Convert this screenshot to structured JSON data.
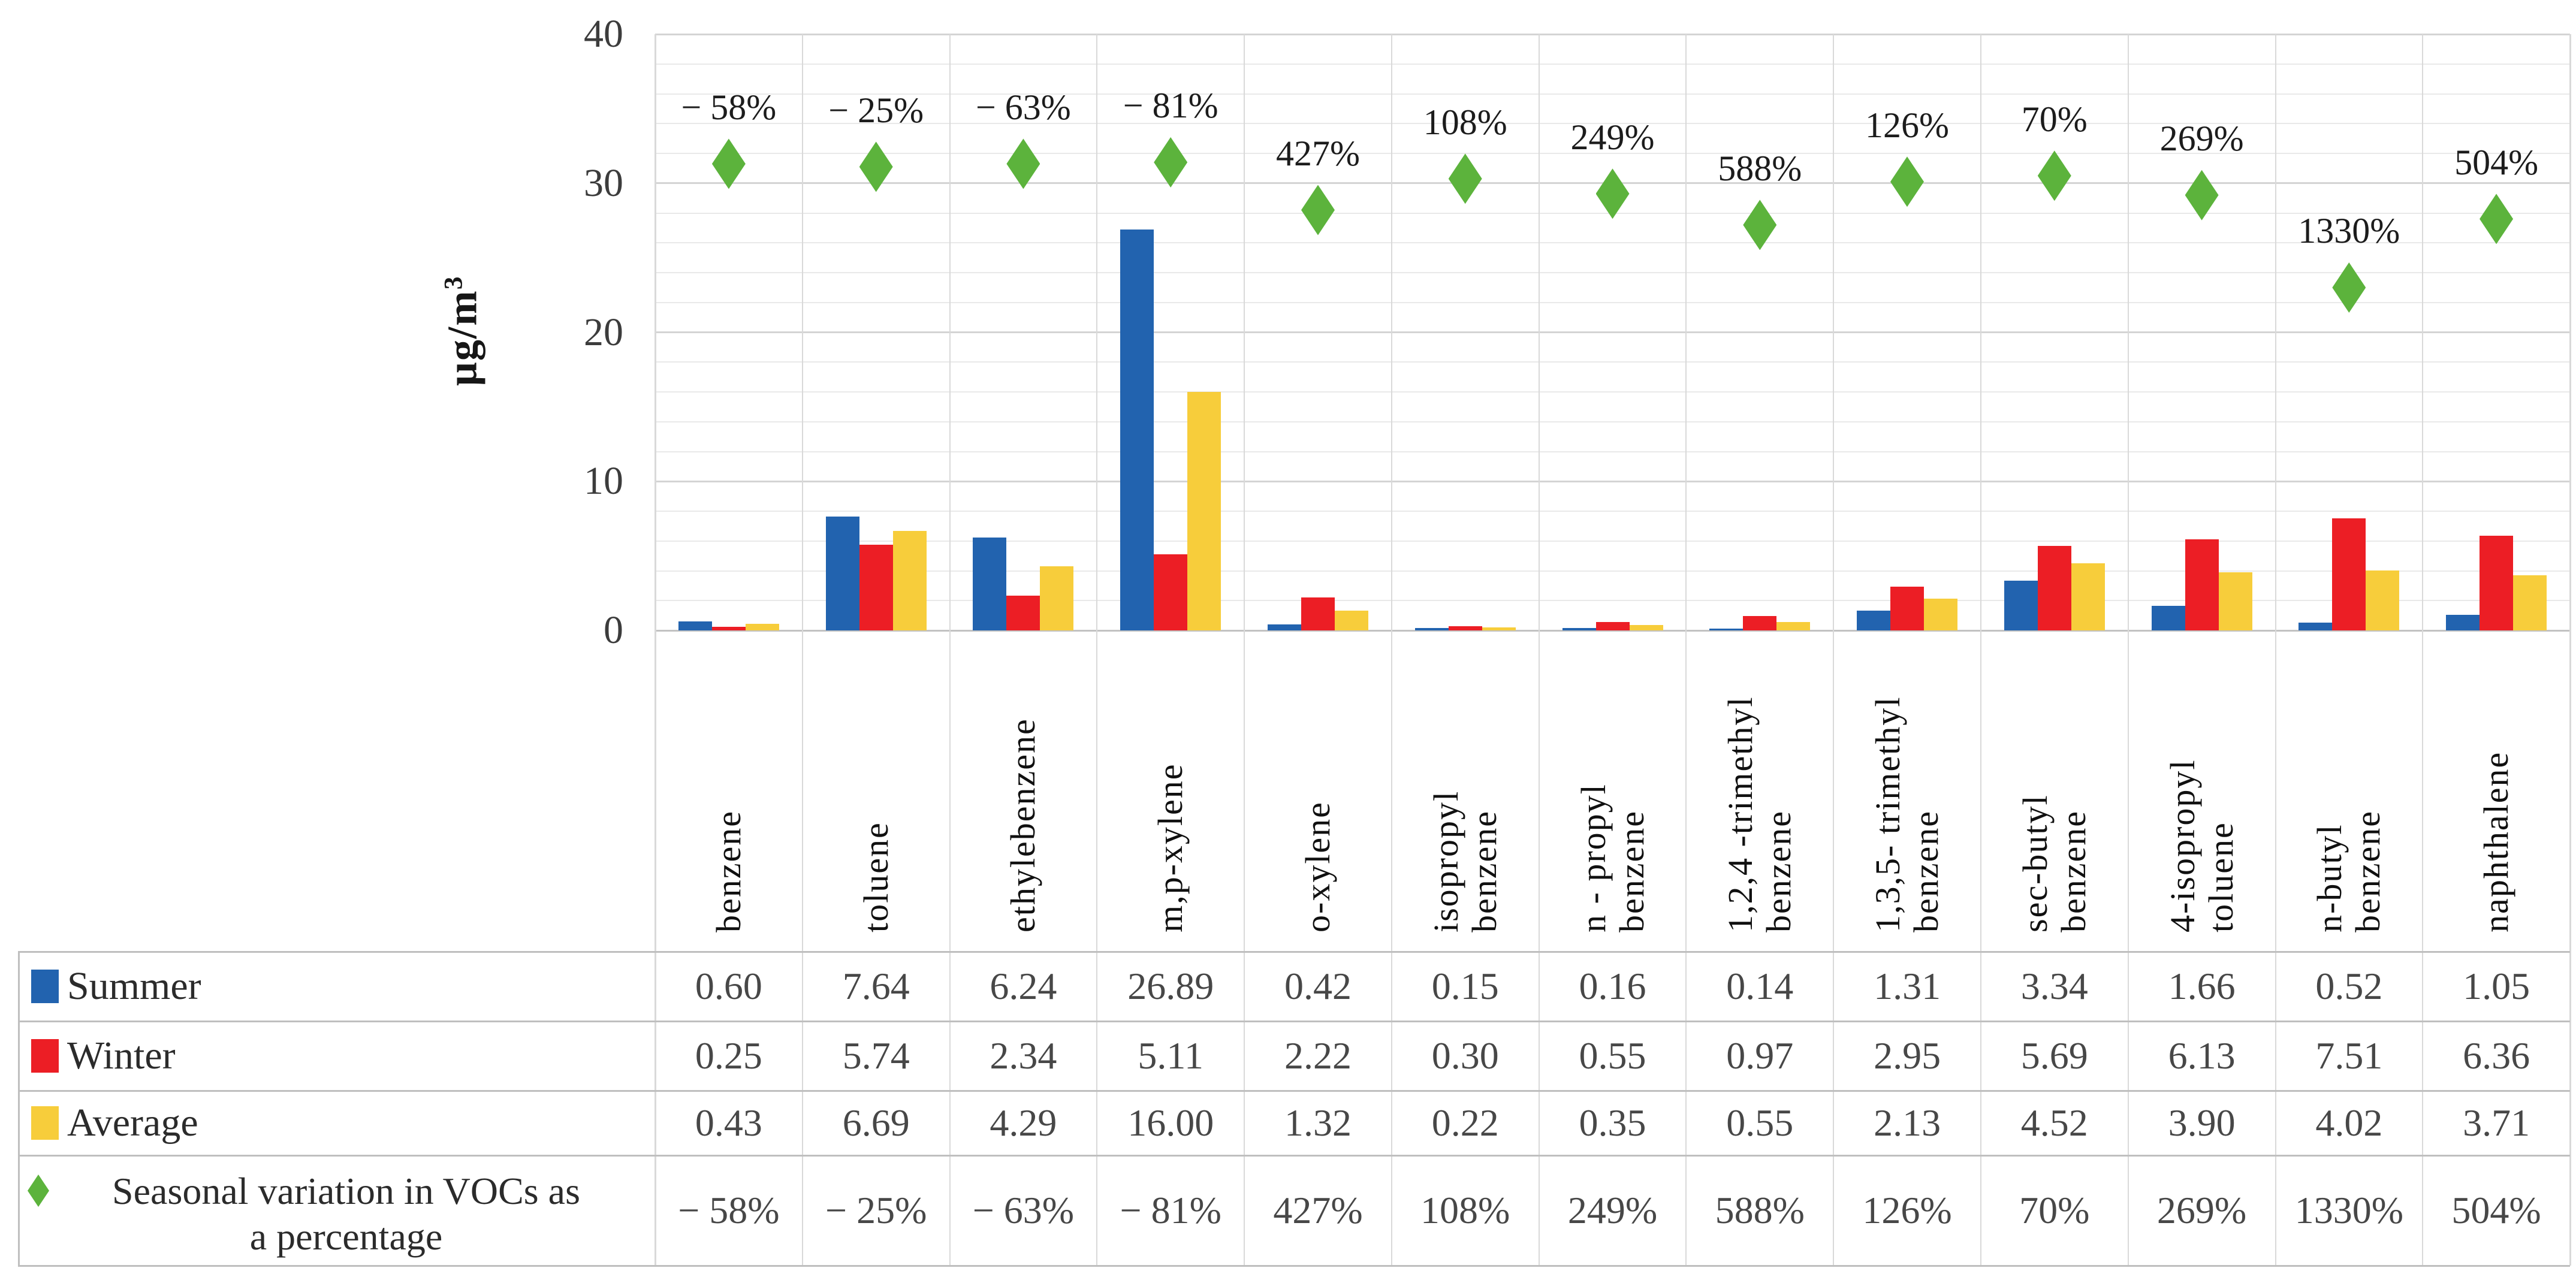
{
  "chart_data": {
    "type": "bar",
    "title": "",
    "ylabel": "µg/m³",
    "ylabel_base": "µg/m",
    "ylabel_exp": "3",
    "ylim": [
      0,
      40
    ],
    "y_ticks": [
      40,
      30,
      20,
      10,
      0
    ],
    "y_major_step": 10,
    "y_minor_step": 2,
    "grid": true,
    "legend_position": "table-rows-left",
    "categories": [
      "benzene",
      "toluene",
      "ethylebenzene",
      "m,p-xylene",
      "o-xylene",
      "isopropyl benzene",
      "n - propyl benzene",
      "1,2,4 -trimethyl benzene",
      "1,3,5- trimethyl benzene",
      "sec-butyl benzene",
      "4-isopropyl toluene",
      "n-butyl benzene",
      "naphthalene"
    ],
    "category_label_lines": [
      [
        "benzene"
      ],
      [
        "toluene"
      ],
      [
        "ethylebenzene"
      ],
      [
        "m,p-xylene"
      ],
      [
        "o-xylene"
      ],
      [
        "isopropyl",
        "benzene"
      ],
      [
        "n - propyl",
        "benzene"
      ],
      [
        "1,2,4 -trimethyl",
        "benzene"
      ],
      [
        "1,3,5- trimethyl",
        "benzene"
      ],
      [
        "sec-butyl",
        "benzene"
      ],
      [
        "4-isopropyl",
        "toluene"
      ],
      [
        "n-butyl",
        "benzene"
      ],
      [
        "naphthalene"
      ]
    ],
    "series": [
      {
        "name": "Summer",
        "type": "bar",
        "color": "#2263AF",
        "values": [
          0.6,
          7.64,
          6.24,
          26.89,
          0.42,
          0.15,
          0.16,
          0.14,
          1.31,
          3.34,
          1.66,
          0.52,
          1.05
        ]
      },
      {
        "name": "Winter",
        "type": "bar",
        "color": "#EC1E25",
        "values": [
          0.25,
          5.74,
          2.34,
          5.11,
          2.22,
          0.3,
          0.55,
          0.97,
          2.95,
          5.69,
          6.13,
          7.51,
          6.36
        ]
      },
      {
        "name": "Average",
        "type": "bar",
        "color": "#F7CD3B",
        "values": [
          0.43,
          6.69,
          4.29,
          16.0,
          1.32,
          0.22,
          0.35,
          0.55,
          2.13,
          4.52,
          3.9,
          4.02,
          3.71
        ]
      },
      {
        "name": "Seasonal variation in VOCs as a percentage",
        "type": "scatter-diamond",
        "color": "#5CB33C",
        "percent_values": [
          -58,
          -25,
          -63,
          -81,
          427,
          108,
          249,
          588,
          126,
          70,
          269,
          1330,
          504
        ],
        "percent_labels": [
          "− 58%",
          "− 25%",
          "− 63%",
          "− 81%",
          "427%",
          "108%",
          "249%",
          "588%",
          "126%",
          "70%",
          "269%",
          "1330%",
          "504%"
        ],
        "marker_pos_left_axis": [
          31.3,
          31.1,
          31.3,
          31.4,
          28.2,
          30.3,
          29.3,
          27.2,
          30.1,
          30.5,
          29.2,
          23.0,
          27.6
        ]
      }
    ]
  },
  "table": {
    "rows": [
      {
        "label": "Summer",
        "key_shape": "square",
        "key_color": "#2263AF",
        "cells": [
          "0.60",
          "7.64",
          "6.24",
          "26.89",
          "0.42",
          "0.15",
          "0.16",
          "0.14",
          "1.31",
          "3.34",
          "1.66",
          "0.52",
          "1.05"
        ]
      },
      {
        "label": "Winter",
        "key_shape": "square",
        "key_color": "#EC1E25",
        "cells": [
          "0.25",
          "5.74",
          "2.34",
          "5.11",
          "2.22",
          "0.30",
          "0.55",
          "0.97",
          "2.95",
          "5.69",
          "6.13",
          "7.51",
          "6.36"
        ]
      },
      {
        "label": "Average",
        "key_shape": "square",
        "key_color": "#F7CD3B",
        "cells": [
          "0.43",
          "6.69",
          "4.29",
          "16.00",
          "1.32",
          "0.22",
          "0.35",
          "0.55",
          "2.13",
          "4.52",
          "3.90",
          "4.02",
          "3.71"
        ]
      },
      {
        "label": "Seasonal variation in VOCs as a percentage",
        "label_lines": [
          "Seasonal variation in VOCs as",
          "a percentage"
        ],
        "key_shape": "diamond",
        "key_color": "#5CB33C",
        "cells": [
          "− 58%",
          "− 25%",
          "− 63%",
          "− 81%",
          "427%",
          "108%",
          "249%",
          "588%",
          "126%",
          "70%",
          "269%",
          "1330%",
          "504%"
        ]
      }
    ]
  },
  "colors": {
    "grid_minor": "#E9E9E9",
    "grid_major": "#D4D4D4",
    "axis_zero": "#C2C2C2",
    "column_separator": "#D9D9D9",
    "table_border": "#BFBFBF",
    "summer": "#2263AF",
    "winter": "#EC1E25",
    "average": "#F7CD3B",
    "seasonal": "#5CB33C"
  }
}
